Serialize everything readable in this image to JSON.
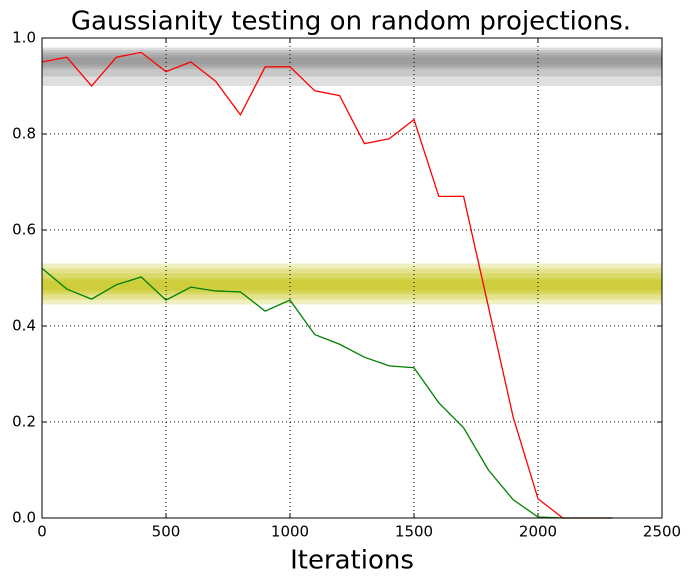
{
  "chart_data": {
    "type": "line",
    "title": "Gaussianity testing on random projections.",
    "x_label": "Iterations",
    "x": [
      0,
      100,
      200,
      300,
      400,
      500,
      600,
      700,
      800,
      900,
      1000,
      1100,
      1200,
      1300,
      1400,
      1500,
      1600,
      1700,
      1800,
      1900,
      2000,
      2100,
      2200,
      2300
    ],
    "series": [
      {
        "color": "#ff0000",
        "values": [
          0.95,
          0.96,
          0.9,
          0.96,
          0.97,
          0.93,
          0.95,
          0.91,
          0.84,
          0.94,
          0.94,
          0.89,
          0.88,
          0.78,
          0.79,
          0.83,
          0.67,
          0.67,
          0.44,
          0.21,
          0.04,
          0.0,
          0.0,
          0.0
        ]
      },
      {
        "color": "#008000",
        "values": [
          0.52,
          0.477,
          0.456,
          0.486,
          0.502,
          0.454,
          0.481,
          0.473,
          0.471,
          0.431,
          0.454,
          0.382,
          0.362,
          0.335,
          0.317,
          0.313,
          0.24,
          0.188,
          0.1,
          0.038,
          0.002,
          0.0,
          0.0,
          0.0
        ]
      }
    ],
    "bands": [
      {
        "color": "#808080",
        "opacity": 0.25,
        "lower": 0.9,
        "upper": 0.98
      },
      {
        "color": "#808080",
        "opacity": 0.25,
        "lower": 0.92,
        "upper": 0.975
      },
      {
        "color": "#808080",
        "opacity": 0.25,
        "lower": 0.935,
        "upper": 0.97
      },
      {
        "color": "#808080",
        "opacity": 0.25,
        "lower": 0.94,
        "upper": 0.965
      },
      {
        "color": "#808080",
        "opacity": 0.25,
        "lower": 0.945,
        "upper": 0.96
      },
      {
        "color": "#bfbf00",
        "opacity": 0.25,
        "lower": 0.445,
        "upper": 0.53
      },
      {
        "color": "#bfbf00",
        "opacity": 0.25,
        "lower": 0.455,
        "upper": 0.52
      },
      {
        "color": "#bfbf00",
        "opacity": 0.25,
        "lower": 0.465,
        "upper": 0.51
      },
      {
        "color": "#bfbf00",
        "opacity": 0.25,
        "lower": 0.47,
        "upper": 0.5
      },
      {
        "color": "#bfbf00",
        "opacity": 0.25,
        "lower": 0.475,
        "upper": 0.495
      }
    ],
    "xlim": [
      0,
      2500
    ],
    "xticks": [
      0,
      500,
      1000,
      1500,
      2000,
      2500
    ],
    "ylim": [
      0,
      1
    ],
    "yticks": [
      {
        "value": 0,
        "label": "0.0"
      },
      0.2,
      0.4,
      0.6,
      0.8,
      {
        "value": 1,
        "label": "1.0"
      }
    ],
    "grid": true
  }
}
